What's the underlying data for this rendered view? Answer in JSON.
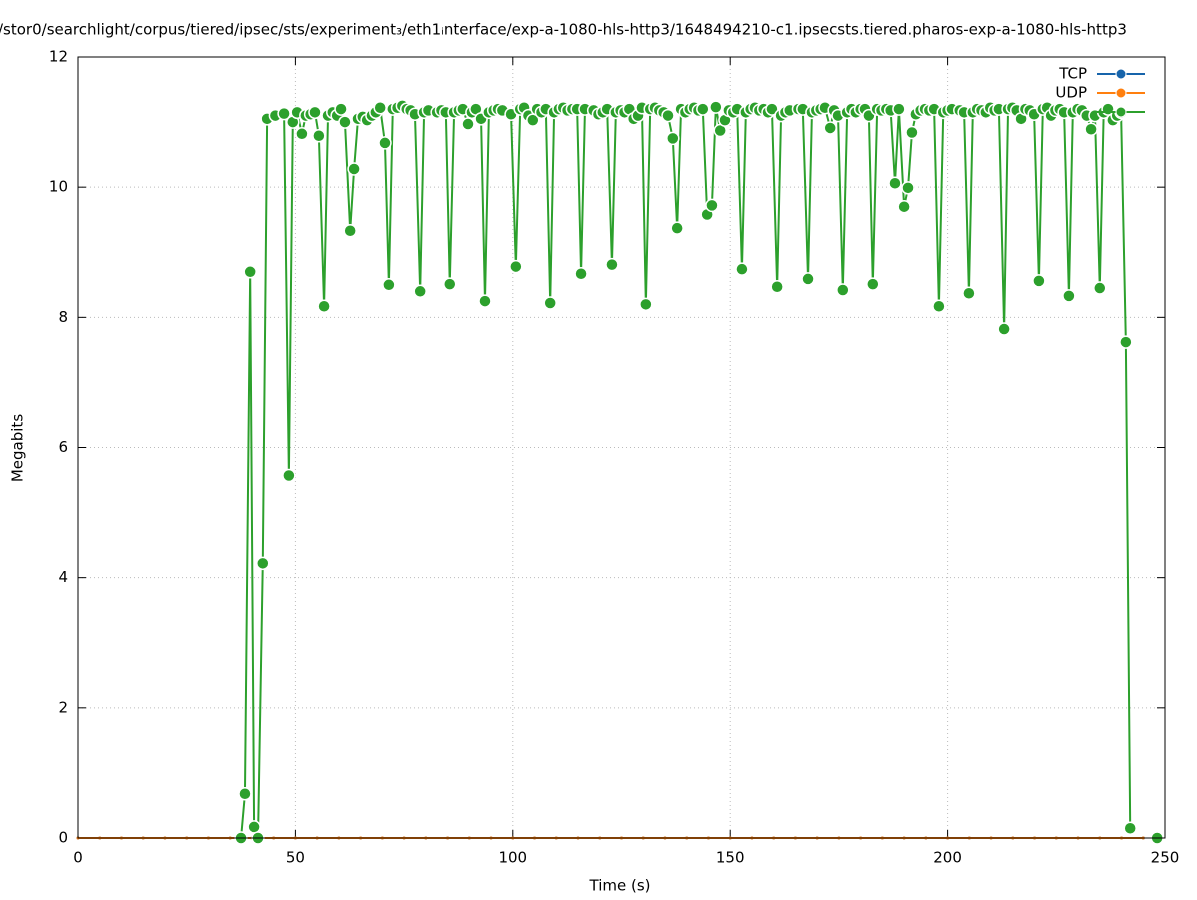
{
  "chart_data": {
    "type": "line",
    "title": "/stor0/searchlight/corpus/tiered/ipsec/sts/experiment₃/eth1ᵢnterface/exp-a-1080-hls-http3/1648494210-c1.ipsecsts.tiered.pharos-exp-a-1080-hls-http3",
    "x_label": "Time (s)",
    "y_label": "Megabits",
    "xlim": [
      0,
      250
    ],
    "xticks": [
      0,
      50,
      100,
      150,
      200,
      250
    ],
    "ylim": [
      0,
      12
    ],
    "yticks": [
      0,
      2,
      4,
      6,
      8,
      10,
      12
    ],
    "grid": true,
    "legend": "top-right",
    "series": [
      {
        "name": "TCP",
        "color": "#1764ab",
        "x": [
          0,
          5,
          10,
          15,
          20,
          25,
          30,
          35,
          40,
          45,
          50,
          55,
          60,
          65,
          70,
          75,
          80,
          85,
          90,
          95,
          100,
          105,
          110,
          115,
          120,
          125,
          130,
          135,
          140,
          145,
          150,
          155,
          160,
          165,
          170,
          175,
          180,
          185,
          190,
          195,
          200,
          205,
          210,
          215,
          220,
          225,
          230,
          235,
          240,
          245
        ],
        "values": [
          0,
          0,
          0,
          0,
          0,
          0,
          0,
          0,
          0,
          0,
          0,
          0,
          0,
          0,
          0,
          0,
          0,
          0,
          0,
          0,
          0,
          0,
          0,
          0,
          0,
          0,
          0,
          0,
          0,
          0,
          0,
          0,
          0,
          0,
          0,
          0,
          0,
          0,
          0,
          0,
          0,
          0,
          0,
          0,
          0,
          0,
          0,
          0,
          0,
          0
        ]
      },
      {
        "name": "UDP",
        "color": "#ff7f0e",
        "x": [
          0,
          5,
          10,
          15,
          20,
          25,
          30,
          35,
          40,
          45,
          50,
          55,
          60,
          65,
          70,
          75,
          80,
          85,
          90,
          95,
          100,
          105,
          110,
          115,
          120,
          125,
          130,
          135,
          140,
          145,
          150,
          155,
          160,
          165,
          170,
          175,
          180,
          185,
          190,
          195,
          200,
          205,
          210,
          215,
          220,
          225,
          230,
          235,
          240,
          245
        ],
        "values": [
          0,
          0,
          0,
          0,
          0,
          0,
          0,
          0,
          0,
          0,
          0,
          0,
          0,
          0,
          0,
          0,
          0,
          0,
          0,
          0,
          0,
          0,
          0,
          0,
          0,
          0,
          0,
          0,
          0,
          0,
          0,
          0,
          0,
          0,
          0,
          0,
          0,
          0,
          0,
          0,
          0,
          0,
          0,
          0,
          0,
          0,
          0,
          0,
          0,
          0
        ]
      },
      {
        "color": "#2ca02c",
        "x": [
          37.5,
          38.4,
          39.6,
          40.5,
          41.4,
          42.5,
          43.5,
          45.4,
          47.4,
          48.5,
          49.4,
          50.4,
          51.5,
          52.4,
          53.5,
          54.5,
          55.4,
          56.6,
          57.5,
          58.6,
          59.6,
          60.5,
          61.4,
          62.6,
          63.5,
          64.4,
          65.5,
          66.5,
          67.6,
          68.5,
          69.5,
          70.6,
          71.5,
          72.4,
          73.5,
          74.6,
          75.6,
          76.5,
          77.5,
          78.7,
          79.6,
          80.6,
          82.6,
          83.6,
          84.6,
          85.5,
          86.5,
          87.6,
          88.5,
          89.7,
          90.6,
          91.5,
          92.7,
          93.6,
          94.5,
          95.6,
          96.6,
          97.6,
          99.6,
          100.7,
          101.7,
          102.6,
          103.6,
          104.6,
          105.6,
          106.6,
          107.6,
          108.6,
          109.5,
          110.6,
          111.6,
          112.6,
          113.7,
          114.8,
          115.7,
          116.6,
          118.6,
          119.7,
          120.7,
          121.7,
          122.8,
          123.7,
          124.8,
          125.7,
          126.8,
          127.8,
          128.8,
          129.7,
          130.6,
          131.6,
          132.7,
          133.7,
          134.7,
          135.7,
          136.8,
          137.8,
          138.7,
          139.7,
          140.7,
          141.7,
          142.7,
          143.7,
          144.7,
          145.8,
          146.7,
          147.7,
          148.8,
          149.7,
          150.7,
          151.6,
          152.7,
          153.6,
          154.7,
          155.7,
          156.7,
          157.7,
          158.7,
          159.6,
          160.8,
          161.7,
          162.7,
          163.7,
          165.7,
          166.7,
          167.9,
          168.8,
          169.8,
          170.8,
          171.8,
          173,
          173.9,
          174.8,
          175.9,
          176.9,
          177.9,
          178.9,
          180,
          181,
          181.9,
          182.8,
          183.8,
          184.8,
          185.9,
          186.9,
          187.9,
          188.8,
          190,
          190.9,
          191.8,
          192.7,
          193.8,
          194.8,
          195.8,
          196.9,
          198,
          199,
          200,
          201,
          202.8,
          203.8,
          204.9,
          205.8,
          206.8,
          207.8,
          208.8,
          209.8,
          210.8,
          211.8,
          213,
          213.9,
          214.9,
          215.9,
          216.9,
          217.9,
          218.9,
          219.9,
          221,
          221.9,
          222.9,
          223.8,
          224.8,
          225.8,
          226.8,
          227.9,
          228.8,
          229.9,
          230.9,
          232,
          233,
          233.9,
          235,
          235.9,
          236.9,
          238,
          239,
          239.9,
          241,
          242,
          245,
          248.2
        ],
        "values": [
          0,
          0.68,
          8.7,
          0.17,
          0,
          4.22,
          11.05,
          11.1,
          11.13,
          5.57,
          11,
          11.15,
          10.82,
          11.1,
          11.12,
          11.15,
          10.79,
          8.17,
          11.1,
          11.15,
          11.1,
          11.2,
          11,
          9.33,
          10.28,
          11.05,
          11.08,
          11.03,
          11.1,
          11.15,
          11.22,
          10.68,
          8.5,
          11.2,
          11.22,
          11.25,
          11.2,
          11.18,
          11.12,
          8.4,
          11.15,
          11.18,
          11.15,
          11.18,
          11.15,
          8.51,
          11.15,
          11.18,
          11.2,
          10.97,
          11.15,
          11.2,
          11.05,
          8.25,
          11.15,
          11.18,
          11.2,
          11.18,
          11.12,
          8.78,
          11.2,
          11.22,
          11.1,
          11.03,
          11.2,
          11.15,
          11.2,
          8.22,
          11.15,
          11.2,
          11.22,
          11.18,
          11.2,
          11.2,
          8.67,
          11.2,
          11.18,
          11.12,
          11.15,
          11.2,
          8.81,
          11.15,
          11.18,
          11.15,
          11.2,
          11.05,
          11.1,
          11.22,
          8.2,
          11.2,
          11.22,
          11.18,
          11.15,
          11.1,
          10.75,
          9.37,
          11.2,
          11.15,
          11.2,
          11.22,
          11.18,
          11.2,
          9.58,
          9.72,
          11.23,
          10.87,
          11.03,
          11.18,
          11.15,
          11.2,
          8.74,
          11.15,
          11.2,
          11.22,
          11.18,
          11.2,
          11.15,
          11.2,
          8.47,
          11.1,
          11.15,
          11.18,
          11.2,
          11.2,
          8.59,
          11.15,
          11.18,
          11.2,
          11.22,
          10.91,
          11.18,
          11.1,
          8.42,
          11.15,
          11.2,
          11.15,
          11.2,
          11.2,
          11.1,
          8.51,
          11.2,
          11.18,
          11.2,
          11.18,
          10.06,
          11.2,
          9.7,
          9.99,
          10.84,
          11.12,
          11.18,
          11.2,
          11.18,
          11.2,
          8.17,
          11.15,
          11.18,
          11.2,
          11.18,
          11.15,
          8.37,
          11.15,
          11.2,
          11.18,
          11.15,
          11.22,
          11.18,
          11.2,
          7.82,
          11.2,
          11.22,
          11.18,
          11.05,
          11.2,
          11.18,
          11.12,
          8.56,
          11.2,
          11.22,
          11.1,
          11.18,
          11.2,
          11.15,
          8.33,
          11.15,
          11.2,
          11.18,
          11.1,
          10.89,
          11.1,
          8.45,
          11.15,
          11.2,
          11.03,
          11.1,
          11.15,
          7.62,
          0.15,
          null,
          0
        ]
      }
    ]
  }
}
